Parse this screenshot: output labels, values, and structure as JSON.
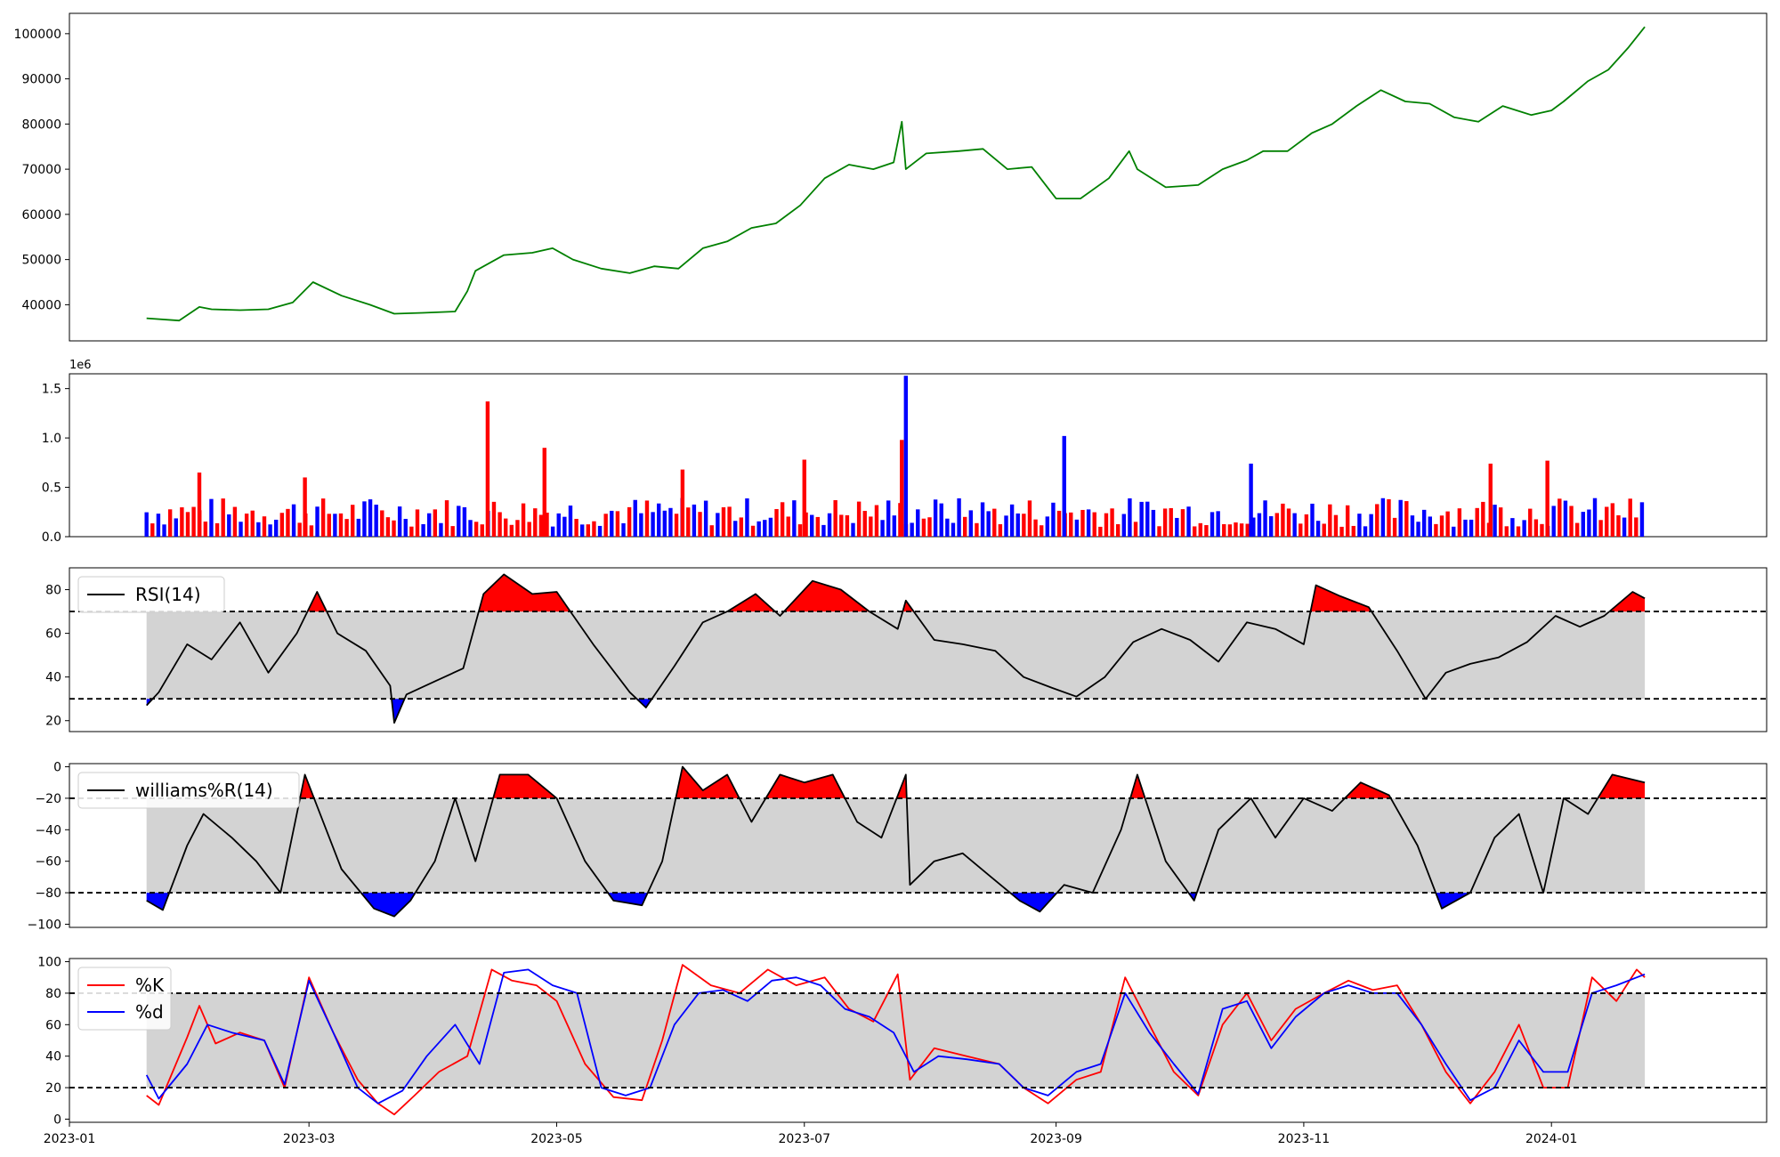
{
  "chart_data": [
    {
      "panel": "price",
      "type": "line",
      "x_range": [
        "2023-01-01",
        "2024-02-23"
      ],
      "ylim": [
        32000,
        104500
      ],
      "yticks": [
        40000,
        50000,
        60000,
        70000,
        80000,
        90000,
        100000
      ],
      "ytick_labels": [
        "40000",
        "50000",
        "60000",
        "70000",
        "80000",
        "90000",
        "100000"
      ],
      "colors": {
        "line": "#008000"
      },
      "x": [
        "2023-01-20",
        "2023-01-28",
        "2023-02-02",
        "2023-02-05",
        "2023-02-12",
        "2023-02-19",
        "2023-02-25",
        "2023-03-02",
        "2023-03-09",
        "2023-03-16",
        "2023-03-22",
        "2023-03-29",
        "2023-04-06",
        "2023-04-09",
        "2023-04-11",
        "2023-04-18",
        "2023-04-25",
        "2023-04-30",
        "2023-05-05",
        "2023-05-12",
        "2023-05-19",
        "2023-05-25",
        "2023-05-31",
        "2023-06-06",
        "2023-06-12",
        "2023-06-18",
        "2023-06-24",
        "2023-06-30",
        "2023-07-06",
        "2023-07-12",
        "2023-07-18",
        "2023-07-23",
        "2023-07-25",
        "2023-07-26",
        "2023-07-31",
        "2023-08-08",
        "2023-08-14",
        "2023-08-20",
        "2023-08-26",
        "2023-09-01",
        "2023-09-07",
        "2023-09-14",
        "2023-09-19",
        "2023-09-21",
        "2023-09-28",
        "2023-10-06",
        "2023-10-12",
        "2023-10-18",
        "2023-10-22",
        "2023-10-28",
        "2023-11-03",
        "2023-11-08",
        "2023-11-14",
        "2023-11-20",
        "2023-11-26",
        "2023-12-02",
        "2023-12-08",
        "2023-12-14",
        "2023-12-20",
        "2023-12-27",
        "2024-01-01",
        "2024-01-04",
        "2024-01-10",
        "2024-01-15",
        "2024-01-20",
        "2024-01-24"
      ],
      "y": [
        37000,
        36500,
        39500,
        39000,
        38800,
        39000,
        40500,
        45000,
        42000,
        40000,
        38000,
        38200,
        38500,
        43000,
        47500,
        51000,
        51500,
        52500,
        50000,
        48000,
        47000,
        48500,
        48000,
        52500,
        54000,
        57000,
        58000,
        62000,
        68000,
        71000,
        70000,
        71500,
        80500,
        70000,
        73500,
        74000,
        74500,
        70000,
        70500,
        63500,
        63500,
        68000,
        74000,
        70000,
        66000,
        66500,
        70000,
        72000,
        74000,
        74000,
        78000,
        80000,
        84000,
        87500,
        85000,
        84500,
        81500,
        80500,
        84000,
        82000,
        83000,
        85000,
        89500,
        92000,
        97000,
        101500
      ]
    },
    {
      "panel": "volume",
      "type": "bar",
      "offset_label": "1e6",
      "ylim": [
        0,
        1.65
      ],
      "yticks": [
        0,
        0.5,
        1.0,
        1.5
      ],
      "ytick_labels": [
        "0.0",
        "0.5",
        "1.0",
        "1.5"
      ],
      "colors": {
        "up": "#ff0000",
        "down": "#0000ff",
        "flat": "#000000"
      },
      "x_start": "2023-01-20",
      "x_end": "2024-01-24",
      "spikes": [
        {
          "x": "2023-02-02",
          "value": 0.65,
          "color": "#ff0000"
        },
        {
          "x": "2023-02-28",
          "value": 0.6,
          "color": "#ff0000"
        },
        {
          "x": "2023-04-14",
          "value": 1.37,
          "color": "#ff0000"
        },
        {
          "x": "2023-04-28",
          "value": 0.9,
          "color": "#ff0000"
        },
        {
          "x": "2023-06-01",
          "value": 0.68,
          "color": "#ff0000"
        },
        {
          "x": "2023-07-01",
          "value": 0.78,
          "color": "#ff0000"
        },
        {
          "x": "2023-07-25",
          "value": 0.98,
          "color": "#ff0000"
        },
        {
          "x": "2023-07-26",
          "value": 1.63,
          "color": "#0000ff"
        },
        {
          "x": "2023-09-03",
          "value": 1.02,
          "color": "#0000ff"
        },
        {
          "x": "2023-10-19",
          "value": 0.74,
          "color": "#0000ff"
        },
        {
          "x": "2023-12-17",
          "value": 0.74,
          "color": "#ff0000"
        },
        {
          "x": "2023-12-31",
          "value": 0.77,
          "color": "#ff0000"
        }
      ]
    },
    {
      "panel": "rsi",
      "type": "line",
      "ylim": [
        15,
        90
      ],
      "yticks": [
        20,
        40,
        60,
        80
      ],
      "ytick_labels": [
        "20",
        "40",
        "60",
        "80"
      ],
      "levels": {
        "upper": 70,
        "lower": 30
      },
      "colors": {
        "line": "#000000",
        "band": "#d3d3d3",
        "overbought": "#ff0000",
        "oversold": "#0000ff"
      },
      "legend": [
        {
          "label": "RSI(14)",
          "color": "#000000"
        }
      ],
      "x": [
        "2023-01-20",
        "2023-01-23",
        "2023-01-30",
        "2023-02-05",
        "2023-02-12",
        "2023-02-19",
        "2023-02-26",
        "2023-03-03",
        "2023-03-08",
        "2023-03-15",
        "2023-03-21",
        "2023-03-22",
        "2023-03-25",
        "2023-04-01",
        "2023-04-08",
        "2023-04-13",
        "2023-04-18",
        "2023-04-25",
        "2023-05-01",
        "2023-05-10",
        "2023-05-19",
        "2023-05-23",
        "2023-05-30",
        "2023-06-06",
        "2023-06-12",
        "2023-06-19",
        "2023-06-25",
        "2023-07-03",
        "2023-07-10",
        "2023-07-17",
        "2023-07-24",
        "2023-07-26",
        "2023-08-02",
        "2023-08-09",
        "2023-08-17",
        "2023-08-24",
        "2023-08-31",
        "2023-09-06",
        "2023-09-13",
        "2023-09-20",
        "2023-09-27",
        "2023-10-04",
        "2023-10-11",
        "2023-10-18",
        "2023-10-25",
        "2023-11-01",
        "2023-11-04",
        "2023-11-10",
        "2023-11-17",
        "2023-11-24",
        "2023-12-01",
        "2023-12-06",
        "2023-12-12",
        "2023-12-19",
        "2023-12-26",
        "2024-01-02",
        "2024-01-08",
        "2024-01-14",
        "2024-01-21",
        "2024-01-24"
      ],
      "y": [
        27,
        33,
        55,
        48,
        65,
        42,
        60,
        79,
        60,
        52,
        36,
        19,
        32,
        38,
        44,
        78,
        87,
        78,
        79,
        55,
        33,
        26,
        45,
        65,
        70,
        78,
        68,
        84,
        80,
        70,
        62,
        75,
        57,
        55,
        52,
        40,
        35,
        31,
        40,
        56,
        62,
        57,
        47,
        65,
        62,
        55,
        82,
        77,
        72,
        52,
        30,
        42,
        46,
        49,
        56,
        68,
        63,
        68,
        79,
        76
      ]
    },
    {
      "panel": "williams",
      "type": "line",
      "ylim": [
        -102,
        2
      ],
      "yticks": [
        0,
        -20,
        -40,
        -60,
        -80,
        -100
      ],
      "ytick_labels": [
        "0",
        "−20",
        "−40",
        "−60",
        "−80",
        "−100"
      ],
      "levels": {
        "upper": -20,
        "lower": -80
      },
      "colors": {
        "line": "#000000",
        "band": "#d3d3d3",
        "overbought": "#ff0000",
        "oversold": "#0000ff"
      },
      "legend": [
        {
          "label": "williams%R(14)",
          "color": "#000000"
        }
      ],
      "x": [
        "2023-01-20",
        "2023-01-24",
        "2023-01-30",
        "2023-02-03",
        "2023-02-10",
        "2023-02-16",
        "2023-02-22",
        "2023-02-28",
        "2023-03-03",
        "2023-03-09",
        "2023-03-17",
        "2023-03-22",
        "2023-03-26",
        "2023-04-01",
        "2023-04-06",
        "2023-04-11",
        "2023-04-17",
        "2023-04-24",
        "2023-05-01",
        "2023-05-08",
        "2023-05-15",
        "2023-05-22",
        "2023-05-27",
        "2023-06-01",
        "2023-06-06",
        "2023-06-12",
        "2023-06-18",
        "2023-06-25",
        "2023-07-01",
        "2023-07-08",
        "2023-07-14",
        "2023-07-20",
        "2023-07-26",
        "2023-07-27",
        "2023-08-02",
        "2023-08-09",
        "2023-08-16",
        "2023-08-23",
        "2023-08-28",
        "2023-09-03",
        "2023-09-10",
        "2023-09-17",
        "2023-09-21",
        "2023-09-28",
        "2023-10-05",
        "2023-10-11",
        "2023-10-19",
        "2023-10-25",
        "2023-11-01",
        "2023-11-08",
        "2023-11-15",
        "2023-11-22",
        "2023-11-29",
        "2023-12-05",
        "2023-12-12",
        "2023-12-18",
        "2023-12-24",
        "2023-12-30",
        "2024-01-04",
        "2024-01-10",
        "2024-01-16",
        "2024-01-24"
      ],
      "y": [
        -85,
        -91,
        -50,
        -30,
        -45,
        -60,
        -80,
        -5,
        -25,
        -65,
        -90,
        -95,
        -85,
        -60,
        -20,
        -60,
        -5,
        -5,
        -20,
        -60,
        -85,
        -88,
        -60,
        0,
        -15,
        -5,
        -35,
        -5,
        -10,
        -5,
        -35,
        -45,
        -5,
        -75,
        -60,
        -55,
        -70,
        -85,
        -92,
        -75,
        -80,
        -40,
        -5,
        -60,
        -85,
        -40,
        -20,
        -45,
        -20,
        -28,
        -10,
        -18,
        -50,
        -90,
        -80,
        -45,
        -30,
        -80,
        -20,
        -30,
        -5,
        -10
      ]
    },
    {
      "panel": "stochastic",
      "type": "line",
      "x_range": [
        "2023-01-01",
        "2024-02-23"
      ],
      "ylim": [
        -2,
        102
      ],
      "yticks": [
        0,
        20,
        40,
        60,
        80,
        100
      ],
      "ytick_labels": [
        "0",
        "20",
        "40",
        "60",
        "80",
        "100"
      ],
      "xticks": [
        "2023-01-01",
        "2023-03-01",
        "2023-05-01",
        "2023-07-01",
        "2023-09-01",
        "2023-11-01",
        "2024-01-01"
      ],
      "xtick_labels": [
        "2023-01",
        "2023-03",
        "2023-05",
        "2023-07",
        "2023-09",
        "2023-11",
        "2024-01"
      ],
      "levels": {
        "upper": 80,
        "lower": 20
      },
      "colors": {
        "band": "#d3d3d3"
      },
      "legend": [
        {
          "label": "%K",
          "color": "#ff0000"
        },
        {
          "label": "%d",
          "color": "#0000ff"
        }
      ],
      "series": [
        {
          "name": "%K",
          "color": "#ff0000",
          "x": [
            "2023-01-20",
            "2023-01-23",
            "2023-01-30",
            "2023-02-02",
            "2023-02-06",
            "2023-02-12",
            "2023-02-18",
            "2023-02-23",
            "2023-03-01",
            "2023-03-07",
            "2023-03-13",
            "2023-03-18",
            "2023-03-22",
            "2023-03-27",
            "2023-04-02",
            "2023-04-09",
            "2023-04-15",
            "2023-04-20",
            "2023-04-26",
            "2023-05-01",
            "2023-05-08",
            "2023-05-15",
            "2023-05-22",
            "2023-05-27",
            "2023-06-01",
            "2023-06-08",
            "2023-06-15",
            "2023-06-22",
            "2023-06-29",
            "2023-07-06",
            "2023-07-12",
            "2023-07-18",
            "2023-07-24",
            "2023-07-27",
            "2023-08-02",
            "2023-08-10",
            "2023-08-18",
            "2023-08-24",
            "2023-08-30",
            "2023-09-06",
            "2023-09-12",
            "2023-09-18",
            "2023-09-24",
            "2023-09-30",
            "2023-10-06",
            "2023-10-12",
            "2023-10-18",
            "2023-10-24",
            "2023-10-30",
            "2023-11-06",
            "2023-11-12",
            "2023-11-18",
            "2023-11-24",
            "2023-11-30",
            "2023-12-06",
            "2023-12-12",
            "2023-12-18",
            "2023-12-24",
            "2023-12-30",
            "2024-01-05",
            "2024-01-11",
            "2024-01-17",
            "2024-01-22",
            "2024-01-24"
          ],
          "y": [
            15,
            9,
            52,
            72,
            48,
            55,
            50,
            20,
            90,
            55,
            25,
            10,
            3,
            15,
            30,
            40,
            95,
            88,
            85,
            75,
            35,
            14,
            12,
            50,
            98,
            85,
            80,
            95,
            85,
            90,
            70,
            62,
            92,
            25,
            45,
            40,
            35,
            20,
            10,
            25,
            30,
            90,
            60,
            30,
            15,
            60,
            80,
            50,
            70,
            80,
            88,
            82,
            85,
            60,
            30,
            10,
            30,
            60,
            20,
            20,
            90,
            75,
            95,
            90
          ]
        },
        {
          "name": "%d",
          "color": "#0000ff",
          "x": [
            "2023-01-20",
            "2023-01-23",
            "2023-01-30",
            "2023-02-04",
            "2023-02-10",
            "2023-02-18",
            "2023-02-23",
            "2023-03-01",
            "2023-03-07",
            "2023-03-13",
            "2023-03-18",
            "2023-03-24",
            "2023-03-30",
            "2023-04-06",
            "2023-04-12",
            "2023-04-18",
            "2023-04-24",
            "2023-04-30",
            "2023-05-06",
            "2023-05-12",
            "2023-05-18",
            "2023-05-24",
            "2023-05-30",
            "2023-06-05",
            "2023-06-11",
            "2023-06-17",
            "2023-06-23",
            "2023-06-29",
            "2023-07-05",
            "2023-07-11",
            "2023-07-17",
            "2023-07-23",
            "2023-07-28",
            "2023-08-03",
            "2023-08-10",
            "2023-08-18",
            "2023-08-24",
            "2023-08-30",
            "2023-09-06",
            "2023-09-12",
            "2023-09-18",
            "2023-09-24",
            "2023-09-30",
            "2023-10-06",
            "2023-10-12",
            "2023-10-18",
            "2023-10-24",
            "2023-10-30",
            "2023-11-06",
            "2023-11-12",
            "2023-11-18",
            "2023-11-24",
            "2023-11-30",
            "2023-12-06",
            "2023-12-12",
            "2023-12-18",
            "2023-12-24",
            "2023-12-30",
            "2024-01-05",
            "2024-01-11",
            "2024-01-17",
            "2024-01-24"
          ],
          "y": [
            28,
            13,
            35,
            60,
            55,
            50,
            22,
            88,
            55,
            20,
            10,
            18,
            40,
            60,
            35,
            93,
            95,
            85,
            80,
            20,
            15,
            20,
            60,
            80,
            82,
            75,
            88,
            90,
            85,
            70,
            65,
            55,
            30,
            40,
            38,
            35,
            20,
            15,
            30,
            35,
            80,
            55,
            35,
            16,
            70,
            75,
            45,
            65,
            80,
            85,
            80,
            80,
            60,
            35,
            12,
            20,
            50,
            30,
            30,
            80,
            85,
            92
          ]
        }
      ]
    }
  ]
}
